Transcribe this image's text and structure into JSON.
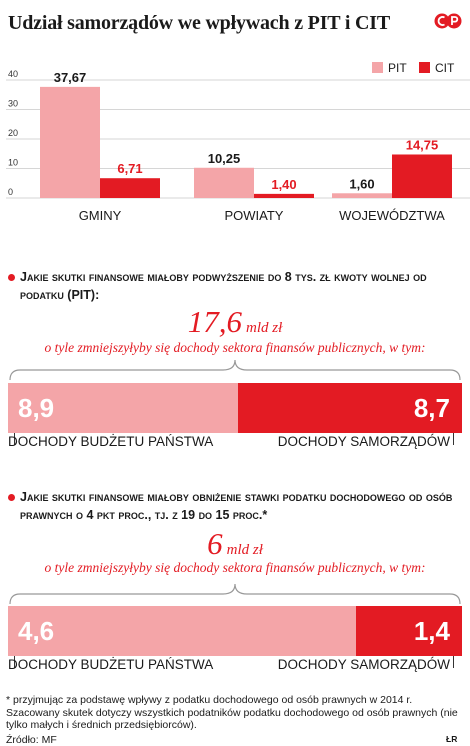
{
  "title": "Udział samorządów we wpływach z PIT i CIT",
  "colors": {
    "pit": "#f4a5a8",
    "cit": "#e31b23",
    "text": "#1a1a1a",
    "grid": "#c8c8c8"
  },
  "chart_data": [
    {
      "type": "bar",
      "categories": [
        "GMINY",
        "POWIATY",
        "WOJEWÓDZTWA"
      ],
      "series": [
        {
          "name": "PIT",
          "values": [
            37.67,
            10.25,
            1.6
          ],
          "labels": [
            "37,67",
            "10,25",
            "1,60"
          ]
        },
        {
          "name": "CIT",
          "values": [
            6.71,
            1.4,
            14.75
          ],
          "labels": [
            "6,71",
            "1,40",
            "14,75"
          ]
        }
      ],
      "yticks": [
        0,
        10,
        20,
        30,
        40
      ],
      "ylim": [
        0,
        40
      ],
      "legend": "top-right",
      "grid": true
    },
    {
      "type": "bar",
      "title": "Jakie skutki finansowe miałoby podwyższenie do 8 tys. zł kwoty wolnej od podatku (PIT):",
      "total": "17,6",
      "unit": "mld zł",
      "subtitle": "o tyle zmniejszyłyby się dochody sektora finansów publicznych, w tym:",
      "values": [
        8.9,
        8.7
      ],
      "labels": [
        "8,9",
        "8,7"
      ],
      "categories": [
        "DOCHODY BUDŻETU PAŃSTWA",
        "DOCHODY SAMORZĄDÓW"
      ]
    },
    {
      "type": "bar",
      "title": "Jakie skutki finansowe miałoby obniżenie stawki podatku dochodowego od osób prawnych o 4 pkt proc., tj. z 19 do 15 proc.*",
      "total": "6",
      "unit": "mld zł",
      "subtitle": "o tyle zmniejszyłyby się dochody sektora finansów publicznych, w tym:",
      "values": [
        4.6,
        1.4
      ],
      "labels": [
        "4,6",
        "1,4"
      ],
      "categories": [
        "DOCHODY BUDŻETU PAŃSTWA",
        "DOCHODY SAMORZĄDÓW"
      ]
    }
  ],
  "footnote": "* przyjmując za podstawę wpływy z podatku dochodowego od osób prawnych w 2014 r. Szacowany skutek dotyczy wszystkich podatników podatku dochodowego od osób prawnych (nie tylko małych i średnich przedsiębiorców).",
  "source": "Źródło: MF",
  "initials": "ŁR"
}
